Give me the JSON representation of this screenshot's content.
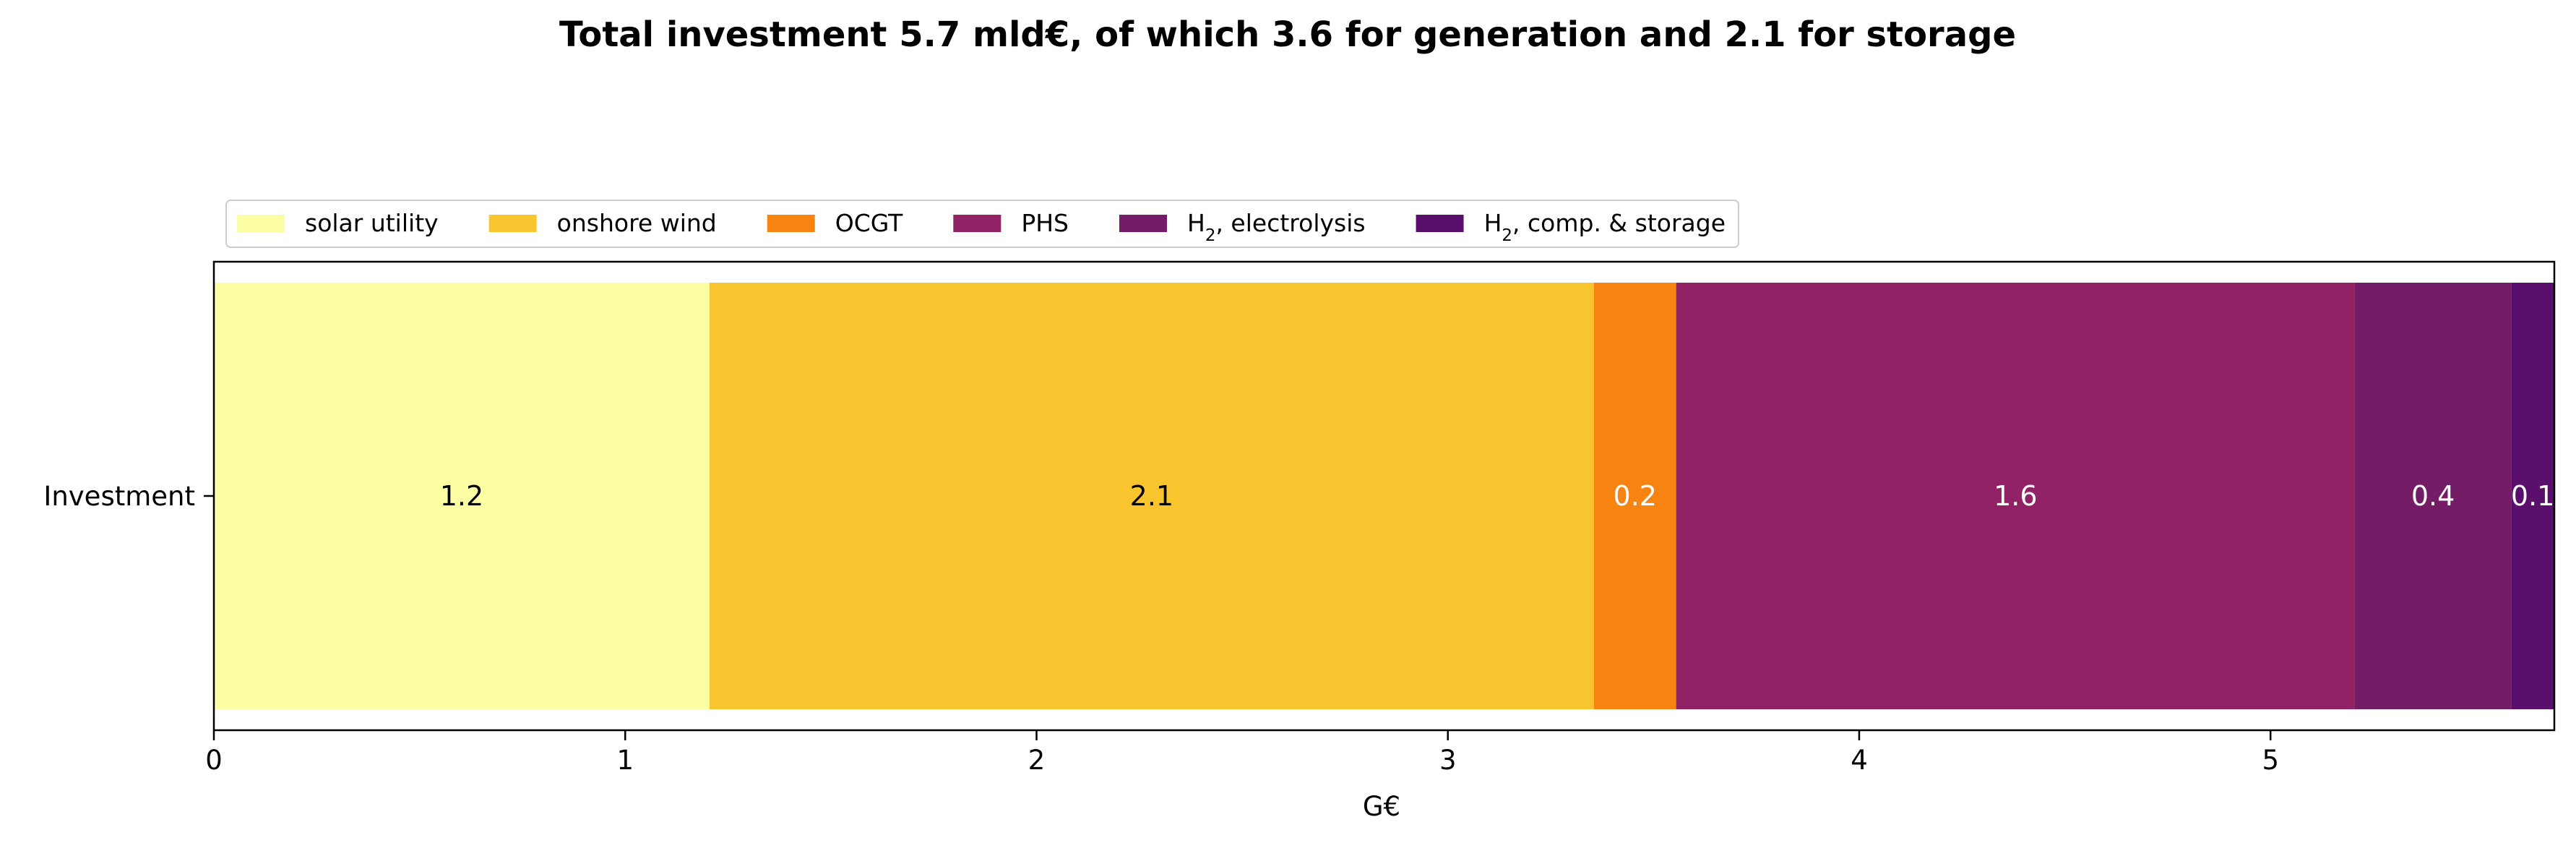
{
  "chart_data": {
    "type": "bar",
    "orientation": "horizontal",
    "stacked": true,
    "title": "Total investment 5.7 mld€, of which 3.6 for generation and 2.1 for storage",
    "xlabel": "G€",
    "ylabel": "",
    "categories": [
      "Investment"
    ],
    "xlim": [
      0,
      5.69
    ],
    "xticks": [
      0,
      1,
      2,
      3,
      4,
      5
    ],
    "grid": false,
    "legend_placement": "top-left, above plot, single row",
    "series": [
      {
        "name": "solar utility",
        "name_main": "solar utility",
        "name_sub": "",
        "name_rest": "",
        "values": [
          1.205
        ],
        "label": "1.2",
        "color": "#fcfea4",
        "label_color": "#000000"
      },
      {
        "name": "onshore wind",
        "name_main": "onshore wind",
        "name_sub": "",
        "name_rest": "",
        "values": [
          2.15
        ],
        "label": "2.1",
        "color": "#f8c52f",
        "label_color": "#000000"
      },
      {
        "name": "OCGT",
        "name_main": "OCGT",
        "name_sub": "",
        "name_rest": "",
        "values": [
          0.2
        ],
        "label": "0.2",
        "color": "#f78410",
        "label_color": "#ffffff"
      },
      {
        "name": "PHS",
        "name_main": "PHS",
        "name_sub": "",
        "name_rest": "",
        "values": [
          1.65
        ],
        "label": "1.6",
        "color": "#902265",
        "label_color": "#ffffff"
      },
      {
        "name": "H2, electrolysis",
        "name_main": "H",
        "name_sub": "2",
        "name_rest": ", electrolysis",
        "values": [
          0.38
        ],
        "label": "0.4",
        "color": "#741c66",
        "label_color": "#ffffff"
      },
      {
        "name": "H2, comp. & storage",
        "name_main": "H",
        "name_sub": "2",
        "name_rest": ", comp. & storage",
        "values": [
          0.105
        ],
        "label": "0.1",
        "color": "#590f6b",
        "label_color": "#ffffff"
      }
    ]
  }
}
